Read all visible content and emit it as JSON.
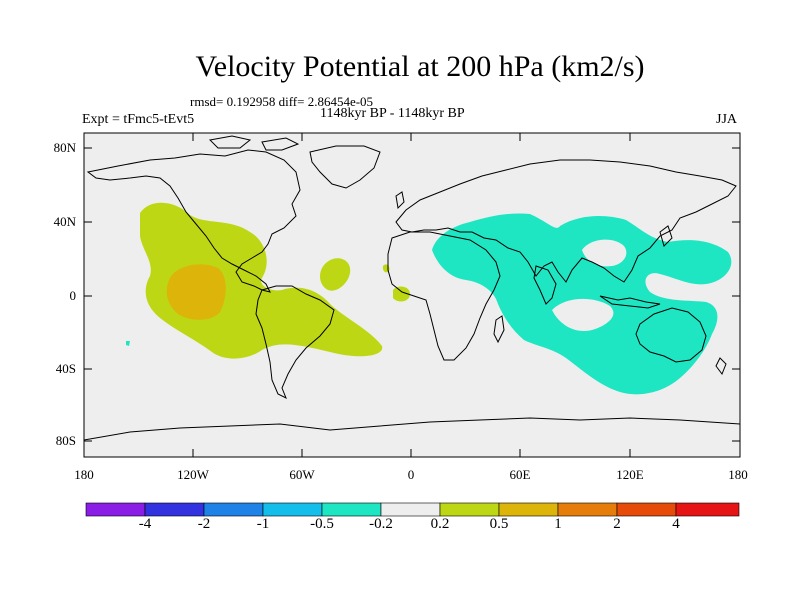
{
  "title": "Velocity Potential at 200 hPa (km2/s)",
  "stats": "rmsd= 0.192958 diff= 2.86454e-05",
  "experiment": "Expt = tFmc5-tEvt5",
  "period": "1148kyr BP - 1148kyr BP",
  "season": "JJA",
  "lat_labels": [
    "80N",
    "40N",
    "0",
    "40S",
    "80S"
  ],
  "lon_labels": [
    "180",
    "120W",
    "60W",
    "0",
    "60E",
    "120E",
    "180"
  ],
  "colorbar": {
    "colors": [
      "#8a1ee6",
      "#3232e0",
      "#1e82e6",
      "#14beeb",
      "#1ee6c3",
      "#eeeeee",
      "#bed714",
      "#dcb40a",
      "#e67d0a",
      "#e64b0a",
      "#e61414"
    ],
    "labels": [
      "-4",
      "-2",
      "-1",
      "-0.5",
      "-0.2",
      "0.2",
      "0.5",
      "1",
      "2",
      "4"
    ]
  },
  "legend_region_colors": {
    "positive_low": "#bed714",
    "positive_mid": "#dcb40a",
    "negative_low": "#1ee6c3",
    "background": "#eeeeee"
  }
}
